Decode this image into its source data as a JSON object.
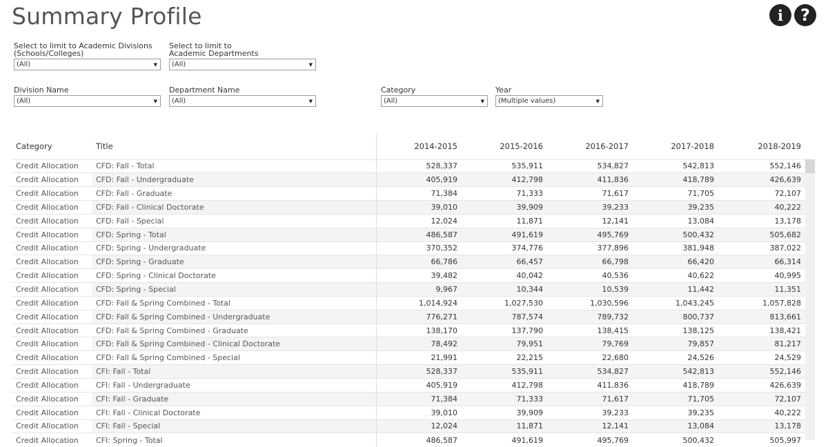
{
  "header": {
    "title": "Summary Profile",
    "info_icon": "info-circle-icon",
    "help_icon": "question-circle-icon",
    "info_glyph": "i",
    "help_glyph": "?"
  },
  "filters": {
    "academic_divisions": {
      "label_line1": "Select to limit to Academic Divisions",
      "label_line2": "(Schools/Colleges)",
      "value": "(All)"
    },
    "academic_departments": {
      "label_line1": "Select to limit to",
      "label_line2": "Academic Departments",
      "value": "(All)"
    },
    "division_name": {
      "label": "Division Name",
      "value": "(All)"
    },
    "department_name": {
      "label": "Department Name",
      "value": "(All)"
    },
    "category": {
      "label": "Category",
      "value": "(All)"
    },
    "year": {
      "label": "Year",
      "value": "(Multiple values)"
    }
  },
  "table": {
    "columns": [
      "Category",
      "Title",
      "2014-2015",
      "2015-2016",
      "2016-2017",
      "2017-2018",
      "2018-2019"
    ],
    "rows": [
      [
        "Credit Allocation",
        "CFD: Fall - Total",
        "528,337",
        "535,911",
        "534,827",
        "542,813",
        "552,146"
      ],
      [
        "Credit Allocation",
        "CFD: Fall - Undergraduate",
        "405,919",
        "412,798",
        "411,836",
        "418,789",
        "426,639"
      ],
      [
        "Credit Allocation",
        "CFD: Fall - Graduate",
        "71,384",
        "71,333",
        "71,617",
        "71,705",
        "72,107"
      ],
      [
        "Credit Allocation",
        "CFD: Fall - Clinical Doctorate",
        "39,010",
        "39,909",
        "39,233",
        "39,235",
        "40,222"
      ],
      [
        "Credit Allocation",
        "CFD: Fall - Special",
        "12,024",
        "11,871",
        "12,141",
        "13,084",
        "13,178"
      ],
      [
        "Credit Allocation",
        "CFD: Spring - Total",
        "486,587",
        "491,619",
        "495,769",
        "500,432",
        "505,682"
      ],
      [
        "Credit Allocation",
        "CFD: Spring - Undergraduate",
        "370,352",
        "374,776",
        "377,896",
        "381,948",
        "387,022"
      ],
      [
        "Credit Allocation",
        "CFD: Spring - Graduate",
        "66,786",
        "66,457",
        "66,798",
        "66,420",
        "66,314"
      ],
      [
        "Credit Allocation",
        "CFD: Spring - Clinical Doctorate",
        "39,482",
        "40,042",
        "40,536",
        "40,622",
        "40,995"
      ],
      [
        "Credit Allocation",
        "CFD: Spring - Special",
        "9,967",
        "10,344",
        "10,539",
        "11,442",
        "11,351"
      ],
      [
        "Credit Allocation",
        "CFD: Fall & Spring Combined - Total",
        "1,014,924",
        "1,027,530",
        "1,030,596",
        "1,043,245",
        "1,057,828"
      ],
      [
        "Credit Allocation",
        "CFD: Fall & Spring Combined - Undergraduate",
        "776,271",
        "787,574",
        "789,732",
        "800,737",
        "813,661"
      ],
      [
        "Credit Allocation",
        "CFD: Fall & Spring Combined - Graduate",
        "138,170",
        "137,790",
        "138,415",
        "138,125",
        "138,421"
      ],
      [
        "Credit Allocation",
        "CFD: Fall & Spring Combined - Clinical Doctorate",
        "78,492",
        "79,951",
        "79,769",
        "79,857",
        "81,217"
      ],
      [
        "Credit Allocation",
        "CFD: Fall & Spring Combined - Special",
        "21,991",
        "22,215",
        "22,680",
        "24,526",
        "24,529"
      ],
      [
        "Credit Allocation",
        "CFI: Fall - Total",
        "528,337",
        "535,911",
        "534,827",
        "542,813",
        "552,146"
      ],
      [
        "Credit Allocation",
        "CFI: Fall - Undergraduate",
        "405,919",
        "412,798",
        "411,836",
        "418,789",
        "426,639"
      ],
      [
        "Credit Allocation",
        "CFI: Fall - Graduate",
        "71,384",
        "71,333",
        "71,617",
        "71,705",
        "72,107"
      ],
      [
        "Credit Allocation",
        "CFI: Fall - Clinical Doctorate",
        "39,010",
        "39,909",
        "39,233",
        "39,235",
        "40,222"
      ],
      [
        "Credit Allocation",
        "CFI: Fall - Special",
        "12,024",
        "11,871",
        "12,141",
        "13,084",
        "13,178"
      ],
      [
        "Credit Allocation",
        "CFI: Spring - Total",
        "486,587",
        "491,619",
        "495,769",
        "500,432",
        "505,997"
      ]
    ]
  }
}
